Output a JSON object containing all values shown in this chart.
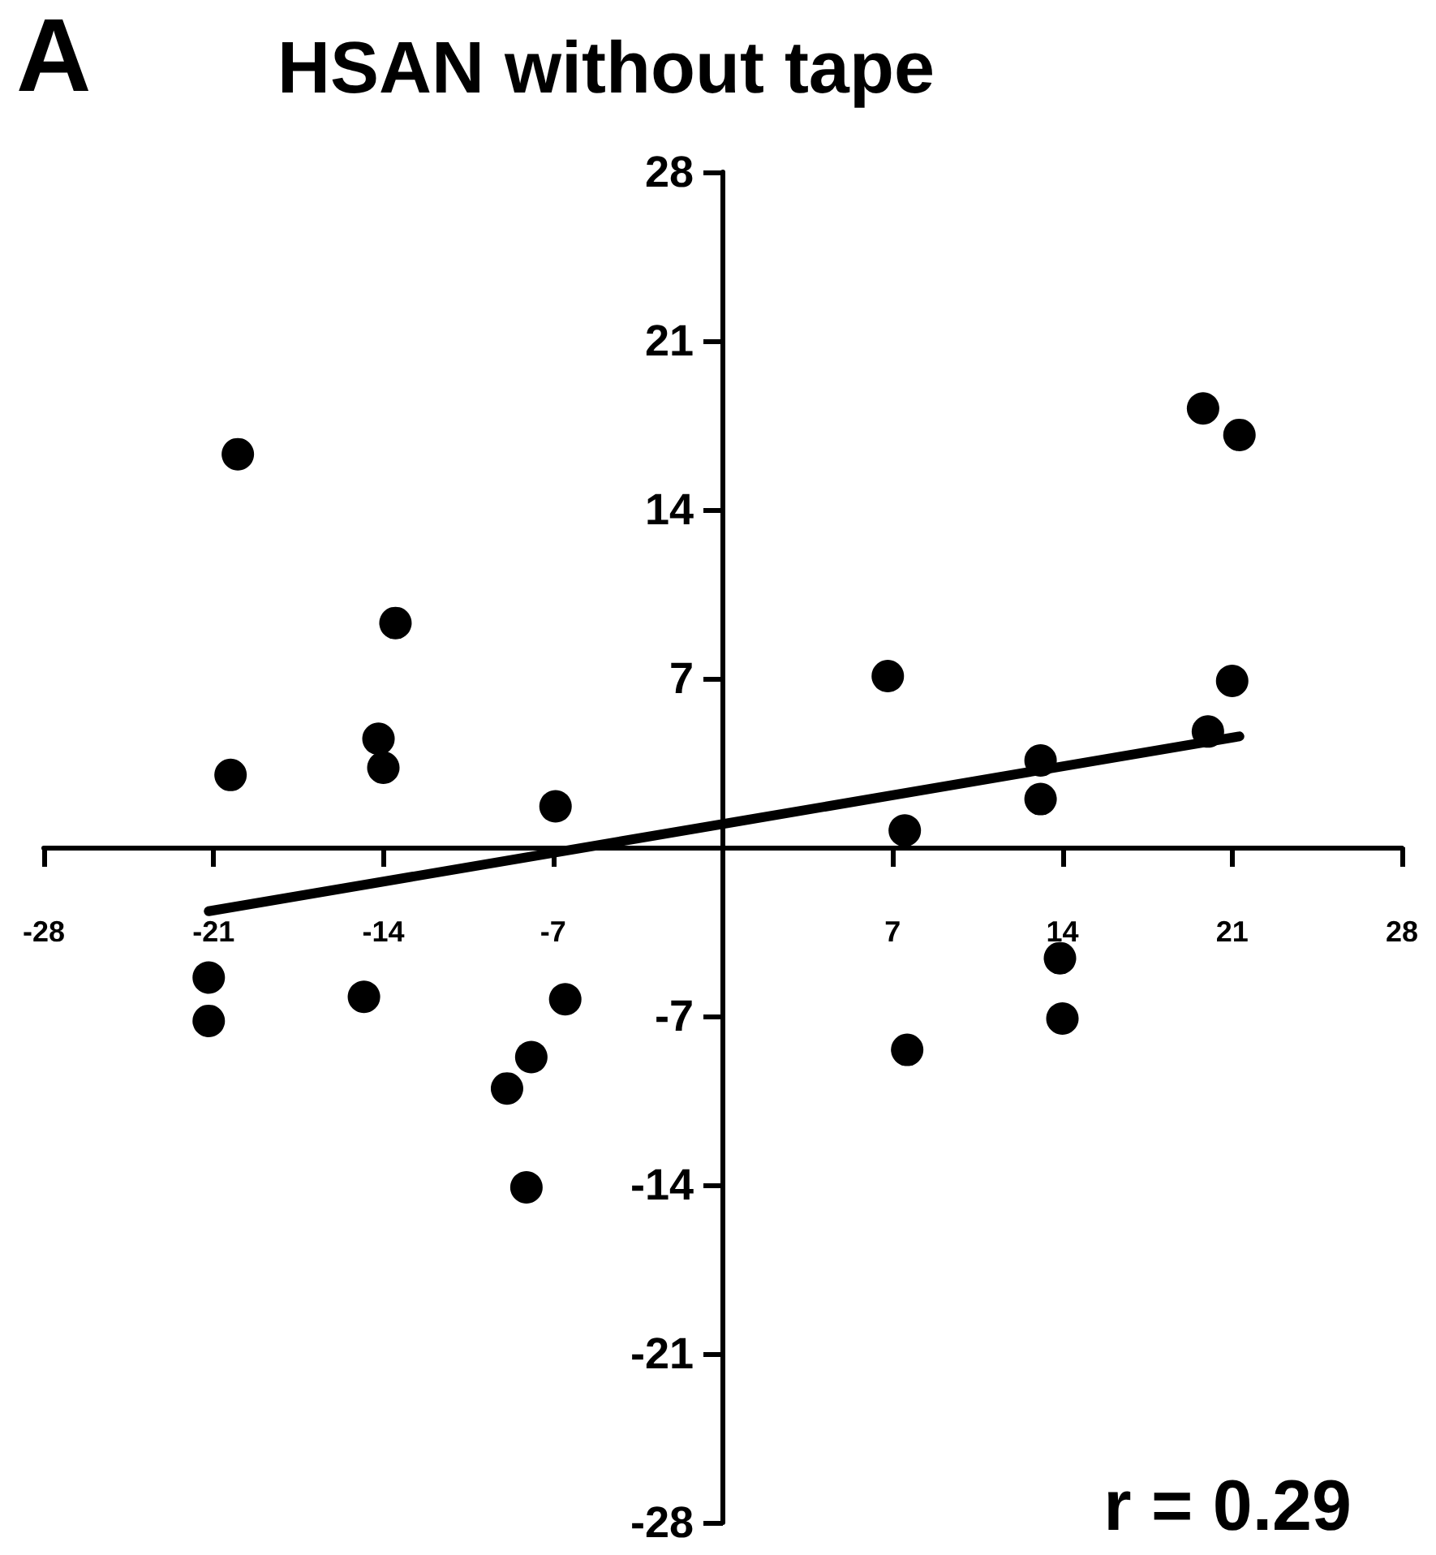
{
  "chart_data": {
    "type": "scatter",
    "title": "HSAN without tape",
    "annotations": [
      "A",
      "r = 0.29"
    ],
    "xlim": [
      -28,
      28
    ],
    "ylim": [
      -28,
      28
    ],
    "xticks": [
      -28,
      -21,
      -14,
      -7,
      7,
      14,
      21,
      28
    ],
    "yticks": [
      -28,
      -21,
      -14,
      -7,
      7,
      14,
      21,
      28
    ],
    "grid": false,
    "marker": "circle",
    "series": [
      {
        "type": "scatter",
        "color": "#000000",
        "x": [
          -20,
          -13.5,
          -14.2,
          -14,
          -20.3,
          -6.9,
          -21.2,
          -21.2,
          -14.8,
          -6.5,
          -7.9,
          -8.9,
          -8.1,
          19.8,
          21.3,
          6.8,
          21,
          20,
          13.1,
          13.1,
          7.5,
          13.9,
          14,
          7.6
        ],
        "values": [
          16.3,
          9.3,
          4.5,
          3.3,
          3,
          1.7,
          -5.4,
          -7.2,
          -6.2,
          -6.3,
          -8.7,
          -10,
          -14.1,
          18.2,
          17.1,
          7.1,
          6.9,
          4.8,
          3.6,
          2,
          0.7,
          -4.6,
          -7.1,
          -8.4
        ]
      },
      {
        "type": "line",
        "color": "#000000",
        "marker": "none",
        "line_style": "solid",
        "x": [
          -21.2,
          21.3
        ],
        "values": [
          -2.65,
          4.6
        ]
      }
    ]
  }
}
